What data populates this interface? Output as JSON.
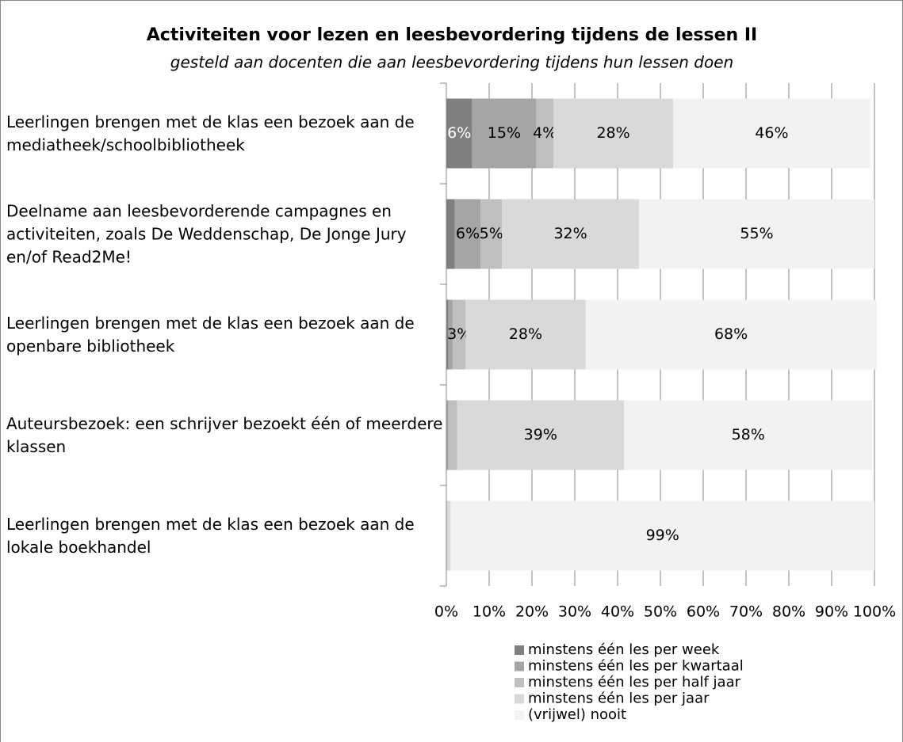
{
  "chart_data": {
    "type": "stacked-bar-horizontal",
    "title": "Activiteiten voor lezen en leesbevordering tijdens de lessen II",
    "subtitle": "gesteld aan docenten die aan leesbevordering tijdens hun lessen doen",
    "categories": [
      "Leerlingen brengen met de klas een bezoek aan de mediatheek/schoolbibliotheek",
      "Deelname aan leesbevorderende campagnes en activiteiten, zoals De Weddenschap, De Jonge Jury en/of Read2Me!",
      "Leerlingen brengen met de klas een bezoek aan de openbare bibliotheek",
      "Auteursbezoek: een schrijver bezoekt één of meerdere klassen",
      "Leerlingen brengen met de klas een bezoek aan de lokale boekhandel"
    ],
    "series": [
      {
        "name": "minstens één les per week",
        "color": "#7f7f7f",
        "label_color": "#ffffff",
        "values": [
          6,
          2,
          0.5,
          0,
          0
        ],
        "value_labels": [
          "6%",
          null,
          null,
          null,
          null
        ]
      },
      {
        "name": "minstens één les per kwartaal",
        "color": "#a5a5a5",
        "values": [
          15,
          6,
          1,
          0.5,
          0
        ],
        "value_labels": [
          "15%",
          "6%",
          null,
          null,
          null
        ]
      },
      {
        "name": "minstens één les per half jaar",
        "color": "#bfbfbf",
        "values": [
          4,
          5,
          3,
          2,
          0
        ],
        "value_labels": [
          "4%",
          "5%",
          "3%",
          null,
          null
        ]
      },
      {
        "name": "minstens één les per jaar",
        "color": "#d9d9d9",
        "values": [
          28,
          32,
          28,
          39,
          1
        ],
        "value_labels": [
          "28%",
          "32%",
          "28%",
          "39%",
          null
        ]
      },
      {
        "name": "(vrijwel) nooit",
        "color": "#f2f2f2",
        "values": [
          46,
          55,
          68,
          58,
          99
        ],
        "value_labels": [
          "46%",
          "55%",
          "68%",
          "58%",
          "99%"
        ]
      }
    ],
    "xlim": [
      0,
      100
    ],
    "xticks": [
      {
        "value": 0,
        "label": "0%"
      },
      {
        "value": 10,
        "label": "10%"
      },
      {
        "value": 20,
        "label": "20%"
      },
      {
        "value": 30,
        "label": "30%"
      },
      {
        "value": 40,
        "label": "40%"
      },
      {
        "value": 50,
        "label": "50%"
      },
      {
        "value": 60,
        "label": "60%"
      },
      {
        "value": 70,
        "label": "70%"
      },
      {
        "value": 80,
        "label": "80%"
      },
      {
        "value": 90,
        "label": "90%"
      },
      {
        "value": 100,
        "label": "100%"
      }
    ],
    "grid": true,
    "legend": "bottom"
  }
}
